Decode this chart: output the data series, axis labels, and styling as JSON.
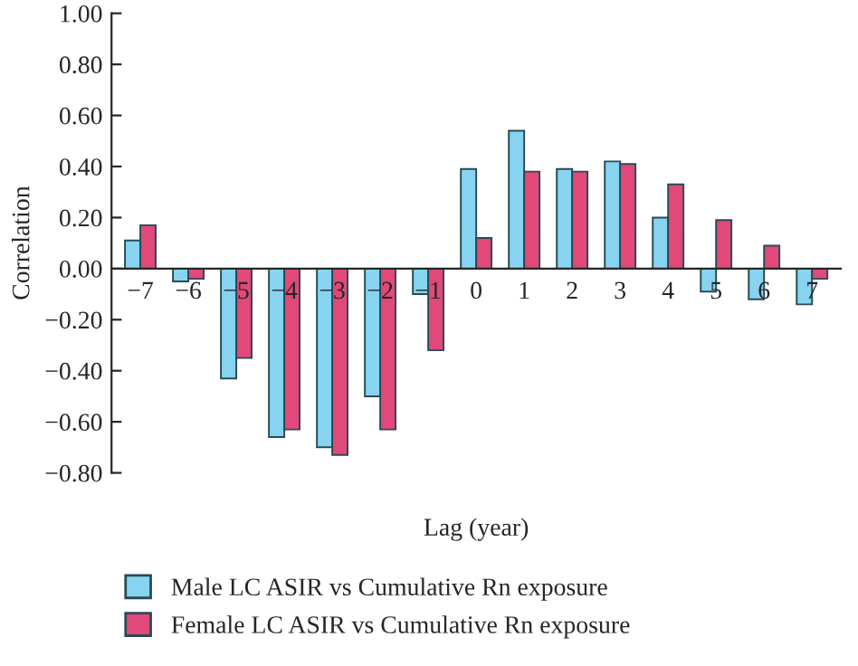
{
  "chart_data": {
    "type": "bar",
    "xlabel": "Lag (year)",
    "ylabel": "Correlation",
    "categories": [
      "−7",
      "−6",
      "−5",
      "−4",
      "−3",
      "−2",
      "−1",
      "0",
      "1",
      "2",
      "3",
      "4",
      "5",
      "6",
      "7"
    ],
    "series": [
      {
        "name": "Male LC ASIR vs Cumulative Rn exposure",
        "color": "#87d4f0",
        "values": [
          0.11,
          -0.05,
          -0.43,
          -0.66,
          -0.7,
          -0.5,
          -0.1,
          0.39,
          0.54,
          0.39,
          0.42,
          0.2,
          -0.09,
          -0.12,
          -0.14
        ]
      },
      {
        "name": "Female LC ASIR vs Cumulative Rn exposure",
        "color": "#e0497a",
        "values": [
          0.17,
          -0.04,
          -0.35,
          -0.63,
          -0.73,
          -0.63,
          -0.32,
          0.12,
          0.38,
          0.38,
          0.41,
          0.33,
          0.19,
          0.09,
          -0.04
        ]
      }
    ],
    "ylim": [
      -0.8,
      1.0
    ],
    "yticks": [
      {
        "value": -0.8,
        "label": "−0.80"
      },
      {
        "value": -0.6,
        "label": "−0.60"
      },
      {
        "value": -0.4,
        "label": "−0.40"
      },
      {
        "value": -0.2,
        "label": "−0.20"
      },
      {
        "value": 0,
        "label": "0.00"
      },
      {
        "value": 0.2,
        "label": "0.20"
      },
      {
        "value": 0.4,
        "label": "0.40"
      },
      {
        "value": 0.6,
        "label": "0.60"
      },
      {
        "value": 0.8,
        "label": "0.80"
      },
      {
        "value": 1.0,
        "label": "1.00"
      }
    ],
    "grid": false,
    "legend": "bottom"
  }
}
